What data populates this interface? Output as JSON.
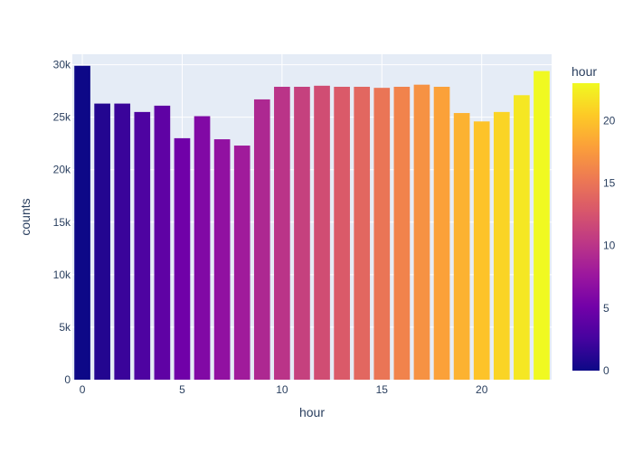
{
  "chart_data": {
    "type": "bar",
    "title": "",
    "xlabel": "hour",
    "ylabel": "counts",
    "x": [
      0,
      1,
      2,
      3,
      4,
      5,
      6,
      7,
      8,
      9,
      10,
      11,
      12,
      13,
      14,
      15,
      16,
      17,
      18,
      19,
      20,
      21,
      22,
      23
    ],
    "values": [
      29900,
      26300,
      26300,
      25500,
      26100,
      23000,
      25100,
      22900,
      22300,
      26700,
      27900,
      27900,
      28000,
      27900,
      27900,
      27800,
      27900,
      28100,
      27900,
      25400,
      24600,
      25500,
      27100,
      29400
    ],
    "ylim": [
      0,
      31000
    ],
    "xlim": [
      -0.5,
      23.5
    ],
    "x_ticks": [
      0,
      5,
      10,
      15,
      20
    ],
    "x_tick_labels": [
      "0",
      "5",
      "10",
      "15",
      "20"
    ],
    "y_ticks": [
      0,
      5000,
      10000,
      15000,
      20000,
      25000,
      30000
    ],
    "y_tick_labels": [
      "0",
      "5k",
      "10k",
      "15k",
      "20k",
      "25k",
      "30k"
    ],
    "grid": true,
    "plot_background": "#e5ecf6",
    "grid_color": "#ffffff",
    "colorbar": {
      "title": "hour",
      "range": [
        0,
        23
      ],
      "ticks": [
        0,
        5,
        10,
        15,
        20
      ],
      "tick_labels": [
        "0",
        "5",
        "10",
        "15",
        "20"
      ],
      "colorscale": [
        "#0d0887",
        "#46039f",
        "#7201a8",
        "#9c179e",
        "#bd3786",
        "#d8576b",
        "#ed7953",
        "#fb9f3a",
        "#fdca26",
        "#f0f921"
      ]
    }
  }
}
